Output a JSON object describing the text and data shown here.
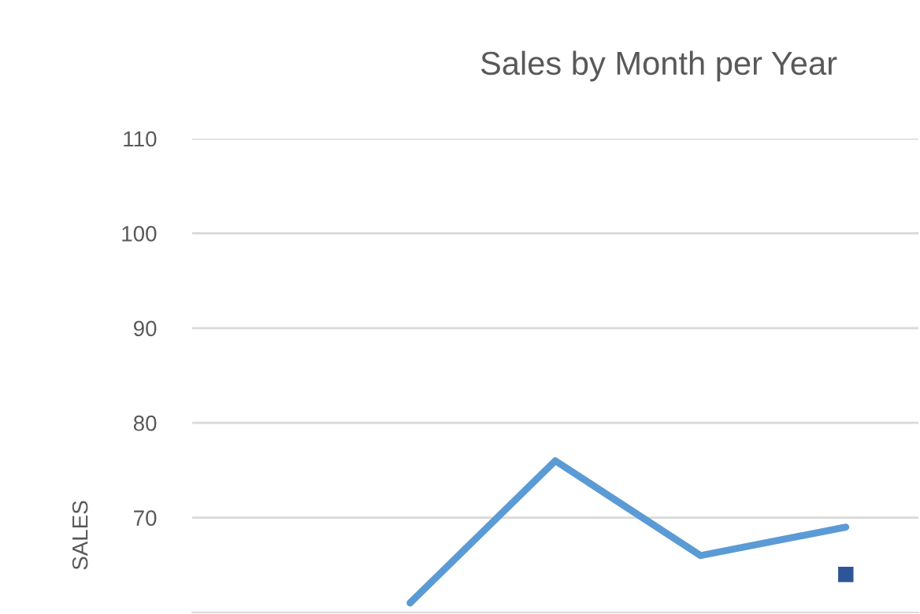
{
  "chart_data": {
    "type": "line",
    "title": "Sales by Month per Year",
    "ylabel": "SALES",
    "categories": [
      null,
      null,
      null,
      null,
      null
    ],
    "series": [
      {
        "color": "#5b9bd5",
        "values": [
          null,
          61,
          76,
          66,
          69
        ]
      },
      {
        "color": "#2e5597",
        "values": [
          null,
          null,
          null,
          null,
          64
        ],
        "marker": "square"
      }
    ],
    "ylim": [
      60,
      110
    ],
    "yticks": [
      70,
      80,
      90,
      100,
      110
    ],
    "grid": "y",
    "tick_labels": "y",
    "marker": "none",
    "line_style": "solid"
  }
}
